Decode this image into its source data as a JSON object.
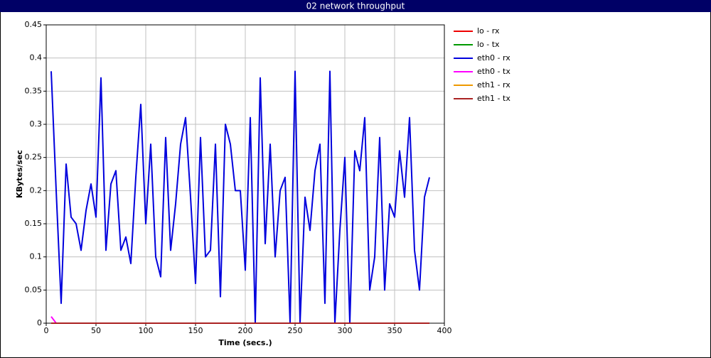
{
  "chart_data": {
    "type": "line",
    "title": "02 network throughput",
    "x_label": "Time (secs.)",
    "y_label": "KBytes/sec",
    "x": [
      5,
      10,
      15,
      20,
      25,
      30,
      35,
      40,
      45,
      50,
      55,
      60,
      65,
      70,
      75,
      80,
      85,
      90,
      95,
      100,
      105,
      110,
      115,
      120,
      125,
      130,
      135,
      140,
      145,
      150,
      155,
      160,
      165,
      170,
      175,
      180,
      185,
      190,
      195,
      200,
      205,
      210,
      215,
      220,
      225,
      230,
      235,
      240,
      245,
      250,
      255,
      260,
      265,
      270,
      275,
      280,
      285,
      290,
      295,
      300,
      305,
      310,
      315,
      320,
      325,
      330,
      335,
      340,
      345,
      350,
      355,
      360,
      365,
      370,
      375,
      380,
      385
    ],
    "series": [
      {
        "name": "eth0 - rx",
        "color": "#0000dd",
        "values": [
          0.38,
          0.2,
          0.03,
          0.24,
          0.16,
          0.15,
          0.11,
          0.17,
          0.21,
          0.16,
          0.37,
          0.11,
          0.21,
          0.23,
          0.11,
          0.13,
          0.09,
          0.22,
          0.33,
          0.15,
          0.27,
          0.1,
          0.07,
          0.28,
          0.11,
          0.18,
          0.27,
          0.31,
          0.19,
          0.06,
          0.28,
          0.1,
          0.11,
          0.27,
          0.04,
          0.3,
          0.27,
          0.2,
          0.2,
          0.08,
          0.31,
          0,
          0.37,
          0.12,
          0.27,
          0.1,
          0.2,
          0.22,
          0,
          0.38,
          0,
          0.19,
          0.14,
          0.23,
          0.27,
          0.03,
          0.38,
          0,
          0.14,
          0.25,
          0,
          0.26,
          0.23,
          0.31,
          0.05,
          0.1,
          0.28,
          0.05,
          0.18,
          0.16,
          0.26,
          0.19,
          0.31,
          0.11,
          0.05,
          0.19,
          0.22
        ]
      },
      {
        "name": "eth0 - tx",
        "color": "#ff00ff",
        "values": [
          0.01,
          0,
          0,
          0,
          0,
          0,
          0,
          0,
          0,
          0,
          0,
          0,
          0,
          0,
          0,
          0,
          0,
          0,
          0,
          0,
          0,
          0,
          0,
          0,
          0,
          0,
          0,
          0,
          0,
          0,
          0,
          0,
          0,
          0,
          0,
          0,
          0,
          0,
          0,
          0,
          0,
          0,
          0,
          0,
          0,
          0,
          0,
          0,
          0,
          0,
          0,
          0,
          0,
          0,
          0,
          0,
          0,
          0,
          0,
          0,
          0,
          0,
          0,
          0,
          0,
          0,
          0,
          0,
          0,
          0,
          0,
          0,
          0,
          0,
          0,
          0,
          0
        ]
      },
      {
        "name": "lo - tx",
        "color": "#009900",
        "values": [
          0,
          0,
          0,
          0,
          0,
          0,
          0,
          0,
          0,
          0,
          0,
          0,
          0,
          0,
          0,
          0,
          0,
          0,
          0,
          0,
          0,
          0,
          0,
          0,
          0,
          0,
          0,
          0,
          0,
          0,
          0,
          0,
          0,
          0,
          0,
          0,
          0,
          0,
          0,
          0,
          0,
          0,
          0,
          0,
          0,
          0,
          0,
          0,
          0,
          0,
          0,
          0,
          0,
          0,
          0,
          0,
          0,
          0,
          0,
          0,
          0,
          0,
          0,
          0,
          0,
          0,
          0,
          0,
          0,
          0,
          0,
          0,
          0,
          0,
          0,
          0,
          0
        ]
      },
      {
        "name": "eth1 - rx",
        "color": "#ee9900",
        "values": [
          0,
          0,
          0,
          0,
          0,
          0,
          0,
          0,
          0,
          0,
          0,
          0,
          0,
          0,
          0,
          0,
          0,
          0,
          0,
          0,
          0,
          0,
          0,
          0,
          0,
          0,
          0,
          0,
          0,
          0,
          0,
          0,
          0,
          0,
          0,
          0,
          0,
          0,
          0,
          0,
          0,
          0,
          0,
          0,
          0,
          0,
          0,
          0,
          0,
          0,
          0,
          0,
          0,
          0,
          0,
          0,
          0,
          0,
          0,
          0,
          0,
          0,
          0,
          0,
          0,
          0,
          0,
          0,
          0,
          0,
          0,
          0,
          0,
          0,
          0,
          0,
          0
        ]
      },
      {
        "name": "lo - rx",
        "color": "#ee0000",
        "values": [
          0,
          0,
          0,
          0,
          0,
          0,
          0,
          0,
          0,
          0,
          0,
          0,
          0,
          0,
          0,
          0,
          0,
          0,
          0,
          0,
          0,
          0,
          0,
          0,
          0,
          0,
          0,
          0,
          0,
          0,
          0,
          0,
          0,
          0,
          0,
          0,
          0,
          0,
          0,
          0,
          0,
          0,
          0,
          0,
          0,
          0,
          0,
          0,
          0,
          0,
          0,
          0,
          0,
          0,
          0,
          0,
          0,
          0,
          0,
          0,
          0,
          0,
          0,
          0,
          0,
          0,
          0,
          0,
          0,
          0,
          0,
          0,
          0,
          0,
          0,
          0,
          0
        ]
      },
      {
        "name": "eth1 - tx",
        "color": "#aa2222",
        "values": [
          0,
          0,
          0,
          0,
          0,
          0,
          0,
          0,
          0,
          0,
          0,
          0,
          0,
          0,
          0,
          0,
          0,
          0,
          0,
          0,
          0,
          0,
          0,
          0,
          0,
          0,
          0,
          0,
          0,
          0,
          0,
          0,
          0,
          0,
          0,
          0,
          0,
          0,
          0,
          0,
          0,
          0,
          0,
          0,
          0,
          0,
          0,
          0,
          0,
          0,
          0,
          0,
          0,
          0,
          0,
          0,
          0,
          0,
          0,
          0,
          0,
          0,
          0,
          0,
          0,
          0,
          0,
          0,
          0,
          0,
          0,
          0,
          0,
          0,
          0,
          0,
          0
        ]
      }
    ],
    "legend_order": [
      4,
      2,
      0,
      1,
      3,
      5
    ],
    "xlim": [
      0,
      400
    ],
    "xticks": [
      0,
      50,
      100,
      150,
      200,
      250,
      300,
      350,
      400
    ],
    "ylim": [
      0,
      0.45
    ],
    "yticks": [
      0,
      0.05,
      0.1,
      0.15,
      0.2,
      0.25,
      0.3,
      0.35,
      0.4,
      0.45
    ],
    "grid": true
  }
}
